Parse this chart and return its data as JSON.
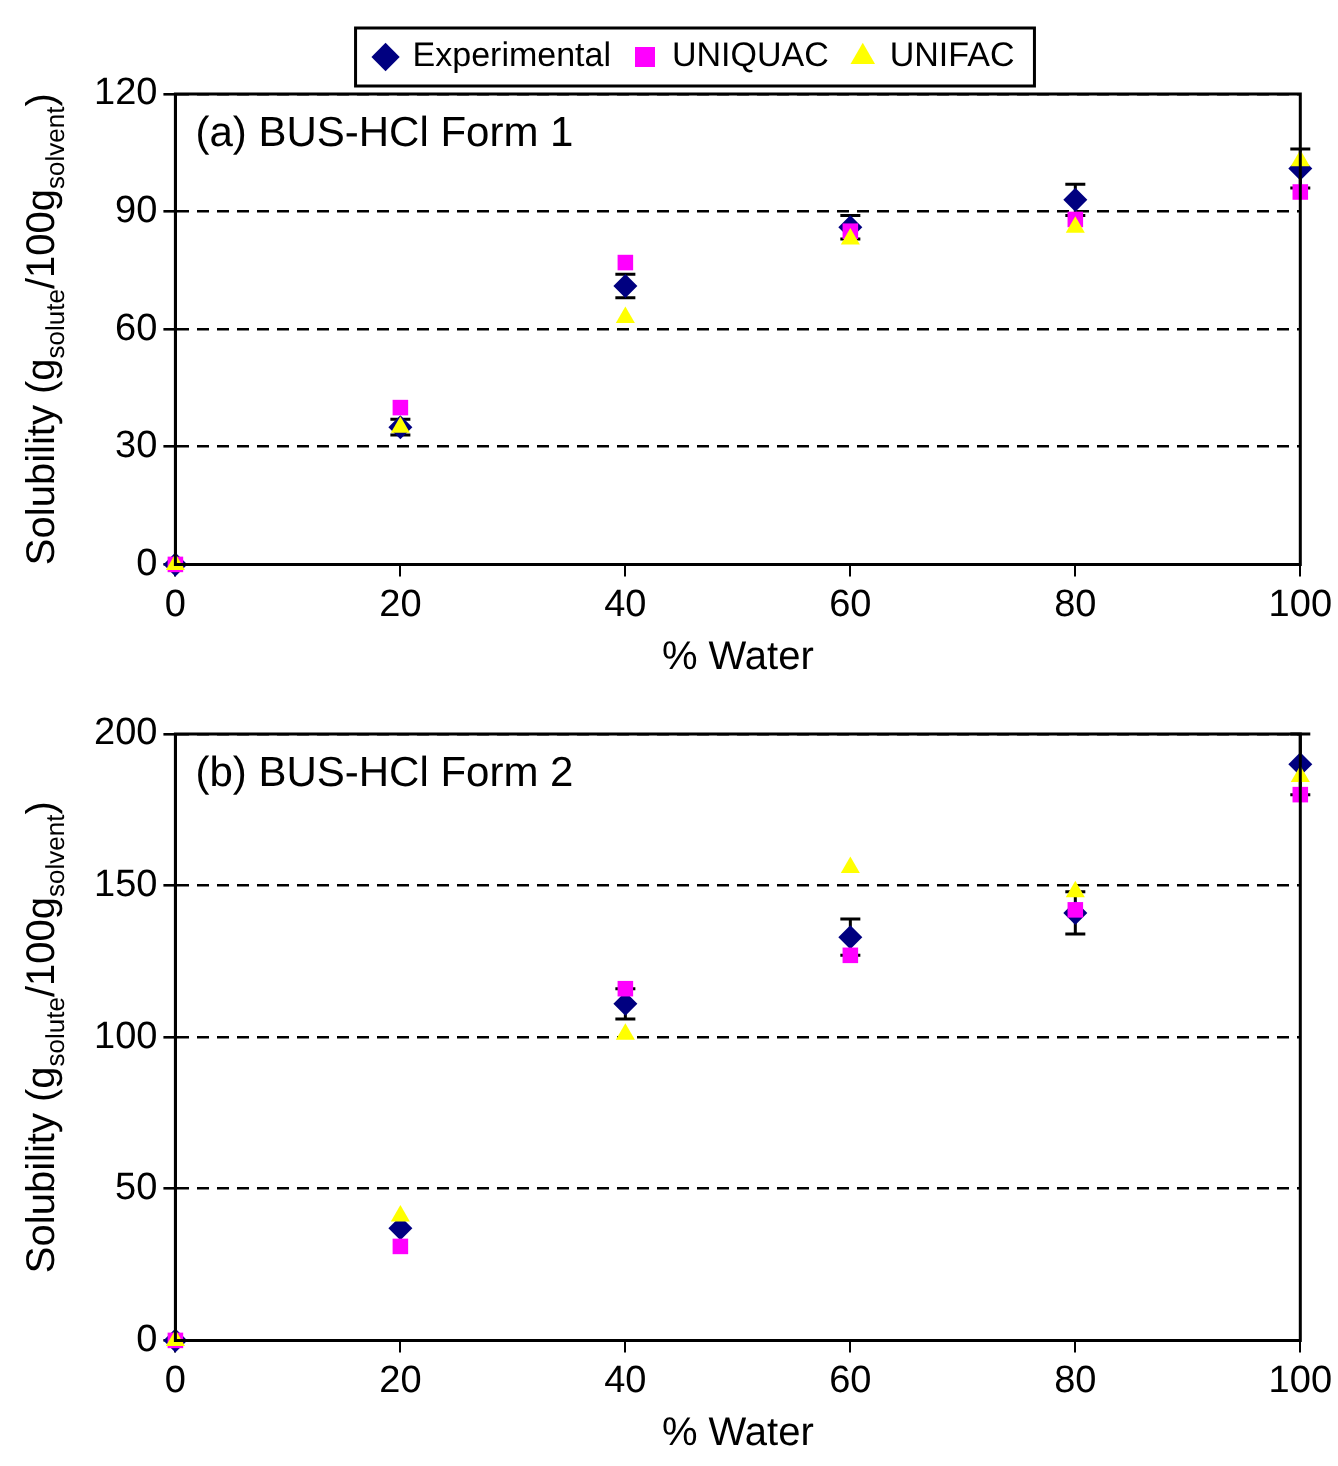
{
  "chart_data": [
    {
      "type": "scatter",
      "title": "(a) BUS-HCl Form 1",
      "xlabel": "% Water",
      "ylabel": "Solubility (g$_{solute}$/100g$_{solvent}$)",
      "x": [
        0,
        20,
        40,
        60,
        80,
        100
      ],
      "xlim": [
        0,
        100
      ],
      "xticks": [
        0,
        20,
        40,
        60,
        80,
        100
      ],
      "ylim": [
        0,
        120
      ],
      "yticks": [
        0,
        30,
        60,
        90,
        120
      ],
      "grid": "y",
      "legend": "top",
      "line_style": "dashed",
      "series": [
        {
          "name": "Experimental",
          "color": "#000080",
          "marker": "diamond",
          "values": [
            0,
            35,
            71,
            86,
            93,
            101
          ],
          "errors": [
            null,
            2,
            3,
            3,
            4,
            5
          ]
        },
        {
          "name": "UNIQUAC",
          "color": "#ff00ff",
          "marker": "square",
          "values": [
            0,
            40,
            77,
            85,
            88,
            95
          ]
        },
        {
          "name": "UNIFAC",
          "color": "#ffff00",
          "marker": "triangle",
          "values": [
            0,
            35,
            63,
            83,
            86,
            103
          ]
        }
      ]
    },
    {
      "type": "scatter",
      "title": "(b) BUS-HCl Form 2",
      "xlabel": "% Water",
      "ylabel": "Solubility (g$_{solute}$/100g$_{solvent}$)",
      "x": [
        0,
        20,
        40,
        60,
        80,
        100
      ],
      "xlim": [
        0,
        100
      ],
      "xticks": [
        0,
        20,
        40,
        60,
        80,
        100
      ],
      "ylim": [
        0,
        200
      ],
      "yticks": [
        0,
        50,
        100,
        150,
        200
      ],
      "grid": "y",
      "line_style": "dashed",
      "series": [
        {
          "color": "#000080",
          "marker": "diamond",
          "values": [
            0,
            37,
            111,
            133,
            141,
            190
          ],
          "errors": [
            null,
            null,
            5,
            6,
            7,
            10
          ]
        },
        {
          "color": "#ff00ff",
          "marker": "square",
          "values": [
            0,
            31,
            116,
            127,
            142,
            180
          ]
        },
        {
          "color": "#ffff00",
          "marker": "triangle",
          "values": [
            0,
            41,
            101,
            156,
            148,
            186
          ]
        }
      ]
    }
  ]
}
